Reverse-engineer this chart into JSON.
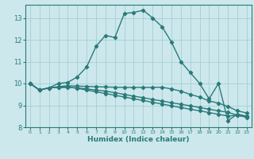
{
  "xlabel": "Humidex (Indice chaleur)",
  "xlim": [
    -0.5,
    23.5
  ],
  "ylim": [
    8,
    13.6
  ],
  "yticks": [
    8,
    9,
    10,
    11,
    12,
    13
  ],
  "xticks": [
    0,
    1,
    2,
    3,
    4,
    5,
    6,
    7,
    8,
    9,
    10,
    11,
    12,
    13,
    14,
    15,
    16,
    17,
    18,
    19,
    20,
    21,
    22,
    23
  ],
  "xtick_labels": [
    "0",
    "1",
    "2",
    "3",
    "4",
    "5",
    "6",
    "7",
    "8",
    "9",
    "10",
    "11",
    "12",
    "13",
    "14",
    "15",
    "16",
    "17",
    "18",
    "19",
    "20",
    "21",
    "22",
    "23"
  ],
  "bg_color": "#cce8ec",
  "grid_color": "#a8cdd4",
  "line_color": "#2a7a7a",
  "line1_y": [
    10.0,
    9.7,
    9.8,
    10.0,
    10.05,
    10.3,
    10.75,
    11.7,
    12.2,
    12.1,
    13.2,
    13.25,
    13.35,
    13.0,
    12.6,
    11.9,
    11.0,
    10.5,
    10.0,
    9.3,
    10.0,
    8.3,
    8.6,
    8.5
  ],
  "line2_y": [
    10.0,
    9.7,
    9.8,
    9.85,
    9.9,
    9.88,
    9.87,
    9.85,
    9.84,
    9.83,
    9.82,
    9.82,
    9.82,
    9.82,
    9.83,
    9.75,
    9.65,
    9.5,
    9.38,
    9.2,
    9.1,
    8.95,
    8.75,
    8.65
  ],
  "line3_y": [
    10.0,
    9.7,
    9.8,
    9.82,
    9.82,
    9.8,
    9.75,
    9.7,
    9.65,
    9.58,
    9.5,
    9.42,
    9.35,
    9.27,
    9.2,
    9.12,
    9.05,
    8.98,
    8.9,
    8.82,
    8.75,
    8.68,
    8.55,
    8.48
  ],
  "line4_y": [
    10.0,
    9.7,
    9.8,
    9.82,
    9.84,
    9.78,
    9.7,
    9.62,
    9.54,
    9.46,
    9.38,
    9.3,
    9.22,
    9.14,
    9.06,
    8.98,
    8.9,
    8.82,
    8.75,
    8.67,
    8.59,
    8.51,
    8.55,
    8.45
  ],
  "marker": "D",
  "marker_size": 2.2,
  "line_width": 1.0
}
